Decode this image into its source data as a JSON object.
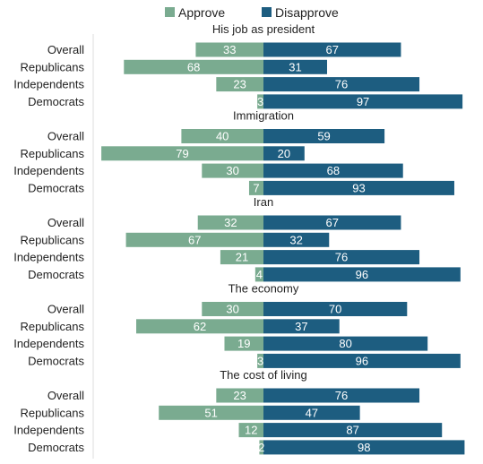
{
  "chart_data": {
    "type": "bar",
    "orientation": "horizontal-diverging",
    "legend": [
      {
        "name": "Approve",
        "color": "#7aab90"
      },
      {
        "name": "Disapprove",
        "color": "#1d5d80"
      }
    ],
    "legend_position": "top-center",
    "grid": false,
    "categories": [
      "Overall",
      "Republicans",
      "Independents",
      "Democrats"
    ],
    "sections": [
      {
        "title": "His job as president",
        "approve": [
          33,
          68,
          23,
          3
        ],
        "disapprove": [
          67,
          31,
          76,
          97
        ]
      },
      {
        "title": "Immigration",
        "approve": [
          40,
          79,
          30,
          7
        ],
        "disapprove": [
          59,
          20,
          68,
          93
        ]
      },
      {
        "title": "Iran",
        "approve": [
          32,
          67,
          21,
          4
        ],
        "disapprove": [
          67,
          32,
          76,
          96
        ]
      },
      {
        "title": "The economy",
        "approve": [
          30,
          62,
          19,
          3
        ],
        "disapprove": [
          70,
          37,
          80,
          96
        ]
      },
      {
        "title": "The cost of living",
        "approve": [
          23,
          51,
          12,
          2
        ],
        "disapprove": [
          76,
          47,
          87,
          98
        ]
      }
    ]
  }
}
